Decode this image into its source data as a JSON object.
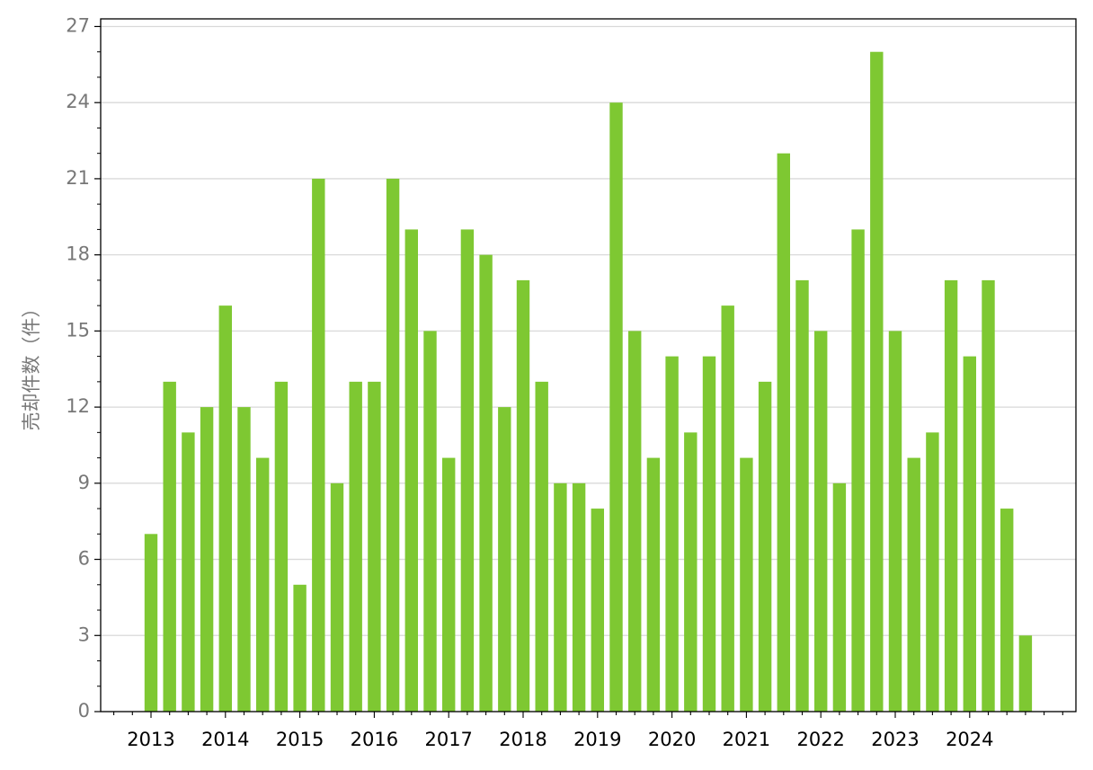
{
  "chart_data": {
    "type": "bar",
    "ylabel": "売却件数（件）",
    "categories": [
      "2013",
      null,
      null,
      null,
      "2014",
      null,
      null,
      null,
      "2015",
      null,
      null,
      null,
      "2016",
      null,
      null,
      null,
      "2017",
      null,
      null,
      null,
      "2018",
      null,
      null,
      null,
      "2019",
      null,
      null,
      null,
      "2020",
      null,
      null,
      null,
      "2021",
      null,
      null,
      null,
      "2022",
      null,
      null,
      null,
      "2023",
      null,
      null,
      null,
      "2024",
      null,
      null,
      null
    ],
    "values": [
      7,
      13,
      11,
      12,
      16,
      12,
      10,
      13,
      5,
      21,
      9,
      13,
      13,
      21,
      19,
      15,
      10,
      19,
      18,
      12,
      17,
      13,
      9,
      9,
      8,
      24,
      15,
      10,
      14,
      11,
      14,
      16,
      10,
      13,
      22,
      17,
      15,
      9,
      19,
      26,
      15,
      10,
      11,
      17,
      14,
      17,
      8,
      3
    ],
    "color": "#7ec832",
    "ylim": [
      0,
      27.3
    ],
    "yticks": [
      0,
      3,
      6,
      9,
      12,
      15,
      18,
      21,
      24,
      27
    ],
    "yminorticks": [
      1,
      2,
      4,
      5,
      7,
      8,
      10,
      11,
      13,
      14,
      16,
      17,
      19,
      20,
      22,
      23,
      25,
      26
    ],
    "grid": true
  }
}
